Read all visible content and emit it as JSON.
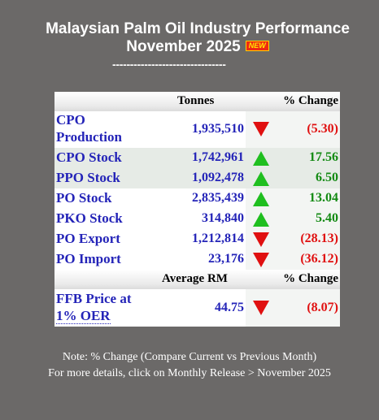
{
  "header": {
    "title_line1": "Malaysian Palm Oil Industry Performance",
    "title_line2": "November 2025",
    "new_badge": "NEW",
    "separator": "--------------------------------"
  },
  "table": {
    "col_tonnes": "Tonnes",
    "col_change": "% Change",
    "rows": [
      {
        "label_line1": "CPO",
        "label_line2": "Production",
        "value": "1,935,510",
        "direction": "down",
        "change": "(5.30)"
      },
      {
        "label": "CPO Stock",
        "value": "1,742,961",
        "direction": "up",
        "change": "17.56"
      },
      {
        "label": "PPO Stock",
        "value": "1,092,478",
        "direction": "up",
        "change": "6.50"
      },
      {
        "label": "PO Stock",
        "value": "2,835,439",
        "direction": "up",
        "change": "13.04"
      },
      {
        "label": "PKO Stock",
        "value": "314,840",
        "direction": "up",
        "change": "5.40"
      },
      {
        "label": "PO Export",
        "value": "1,212,814",
        "direction": "down",
        "change": "(28.13)"
      },
      {
        "label": "PO Import",
        "value": "23,176",
        "direction": "down",
        "change": "(36.12)"
      }
    ],
    "col_avg": "Average RM",
    "col_change2": "% Change",
    "ffb": {
      "label_line1": "FFB Price at",
      "label_line2": "1% OER",
      "value": "44.75",
      "direction": "down",
      "change": "(8.07)"
    }
  },
  "footer": {
    "note": "Note: % Change (Compare Current vs Previous Month)",
    "details": "For more details, click on Monthly Release > November 2025"
  },
  "colors": {
    "background": "#6b6968",
    "up": "#1fbf1f",
    "down": "#e01010",
    "link": "#2424b8"
  },
  "icons": {
    "up": "up-triangle-icon",
    "down": "down-triangle-icon"
  }
}
